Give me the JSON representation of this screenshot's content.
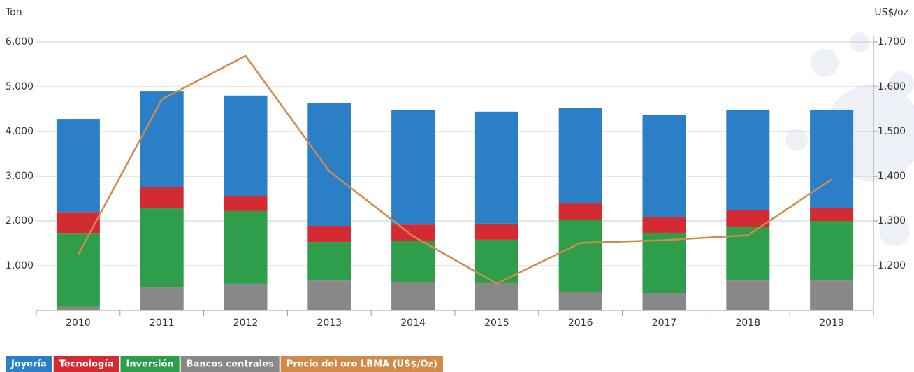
{
  "chart_data": {
    "type": "bar-line",
    "y_label": "Ton",
    "y2_label": "US$/oz",
    "categories": [
      "2010",
      "2011",
      "2012",
      "2013",
      "2014",
      "2015",
      "2016",
      "2017",
      "2018",
      "2019"
    ],
    "stacked": true,
    "series": [
      {
        "name": "Bancos centrales",
        "color": "#888888",
        "values": [
          80,
          515,
          595,
          670,
          640,
          610,
          420,
          390,
          670,
          670
        ]
      },
      {
        "name": "Inversión",
        "color": "#2e9e4a",
        "values": [
          1650,
          1765,
          1625,
          860,
          910,
          970,
          1610,
          1345,
          1205,
          1330
        ]
      },
      {
        "name": "Tecnología",
        "color": "#d42a34",
        "values": [
          470,
          470,
          340,
          360,
          370,
          360,
          360,
          345,
          360,
          295
        ]
      },
      {
        "name": "Joyería",
        "color": "#2a7fc6",
        "values": [
          2080,
          2155,
          2240,
          2750,
          2565,
          2500,
          2125,
          2295,
          2250,
          2190
        ]
      },
      {
        "name": "Precio del oro LBMA (US$/Oz)",
        "color": "#d08b4a",
        "type": "line",
        "axis": "y2",
        "values": [
          1225,
          1572,
          1669,
          1411,
          1266,
          1160,
          1251,
          1257,
          1268,
          1393
        ]
      }
    ],
    "legend_order": [
      3,
      2,
      1,
      0,
      4
    ],
    "ylim": [
      0,
      6000
    ],
    "yticks": [
      {
        "value": 1000,
        "label": "1,000"
      },
      {
        "value": 2000,
        "label": "2,000"
      },
      {
        "value": 3000,
        "label": "3,000"
      },
      {
        "value": 4000,
        "label": "4,000"
      },
      {
        "value": 5000,
        "label": "5,000"
      },
      {
        "value": 6000,
        "label": "6,000"
      }
    ],
    "y2lim": [
      1100,
      1700
    ],
    "y2ticks": [
      {
        "value": 1200,
        "label": "1,200"
      },
      {
        "value": 1300,
        "label": "1,300"
      },
      {
        "value": 1400,
        "label": "1,400"
      },
      {
        "value": 1500,
        "label": "1,500"
      },
      {
        "value": 1600,
        "label": "1,600"
      },
      {
        "value": 1700,
        "label": "1,700"
      }
    ],
    "grid": true
  }
}
